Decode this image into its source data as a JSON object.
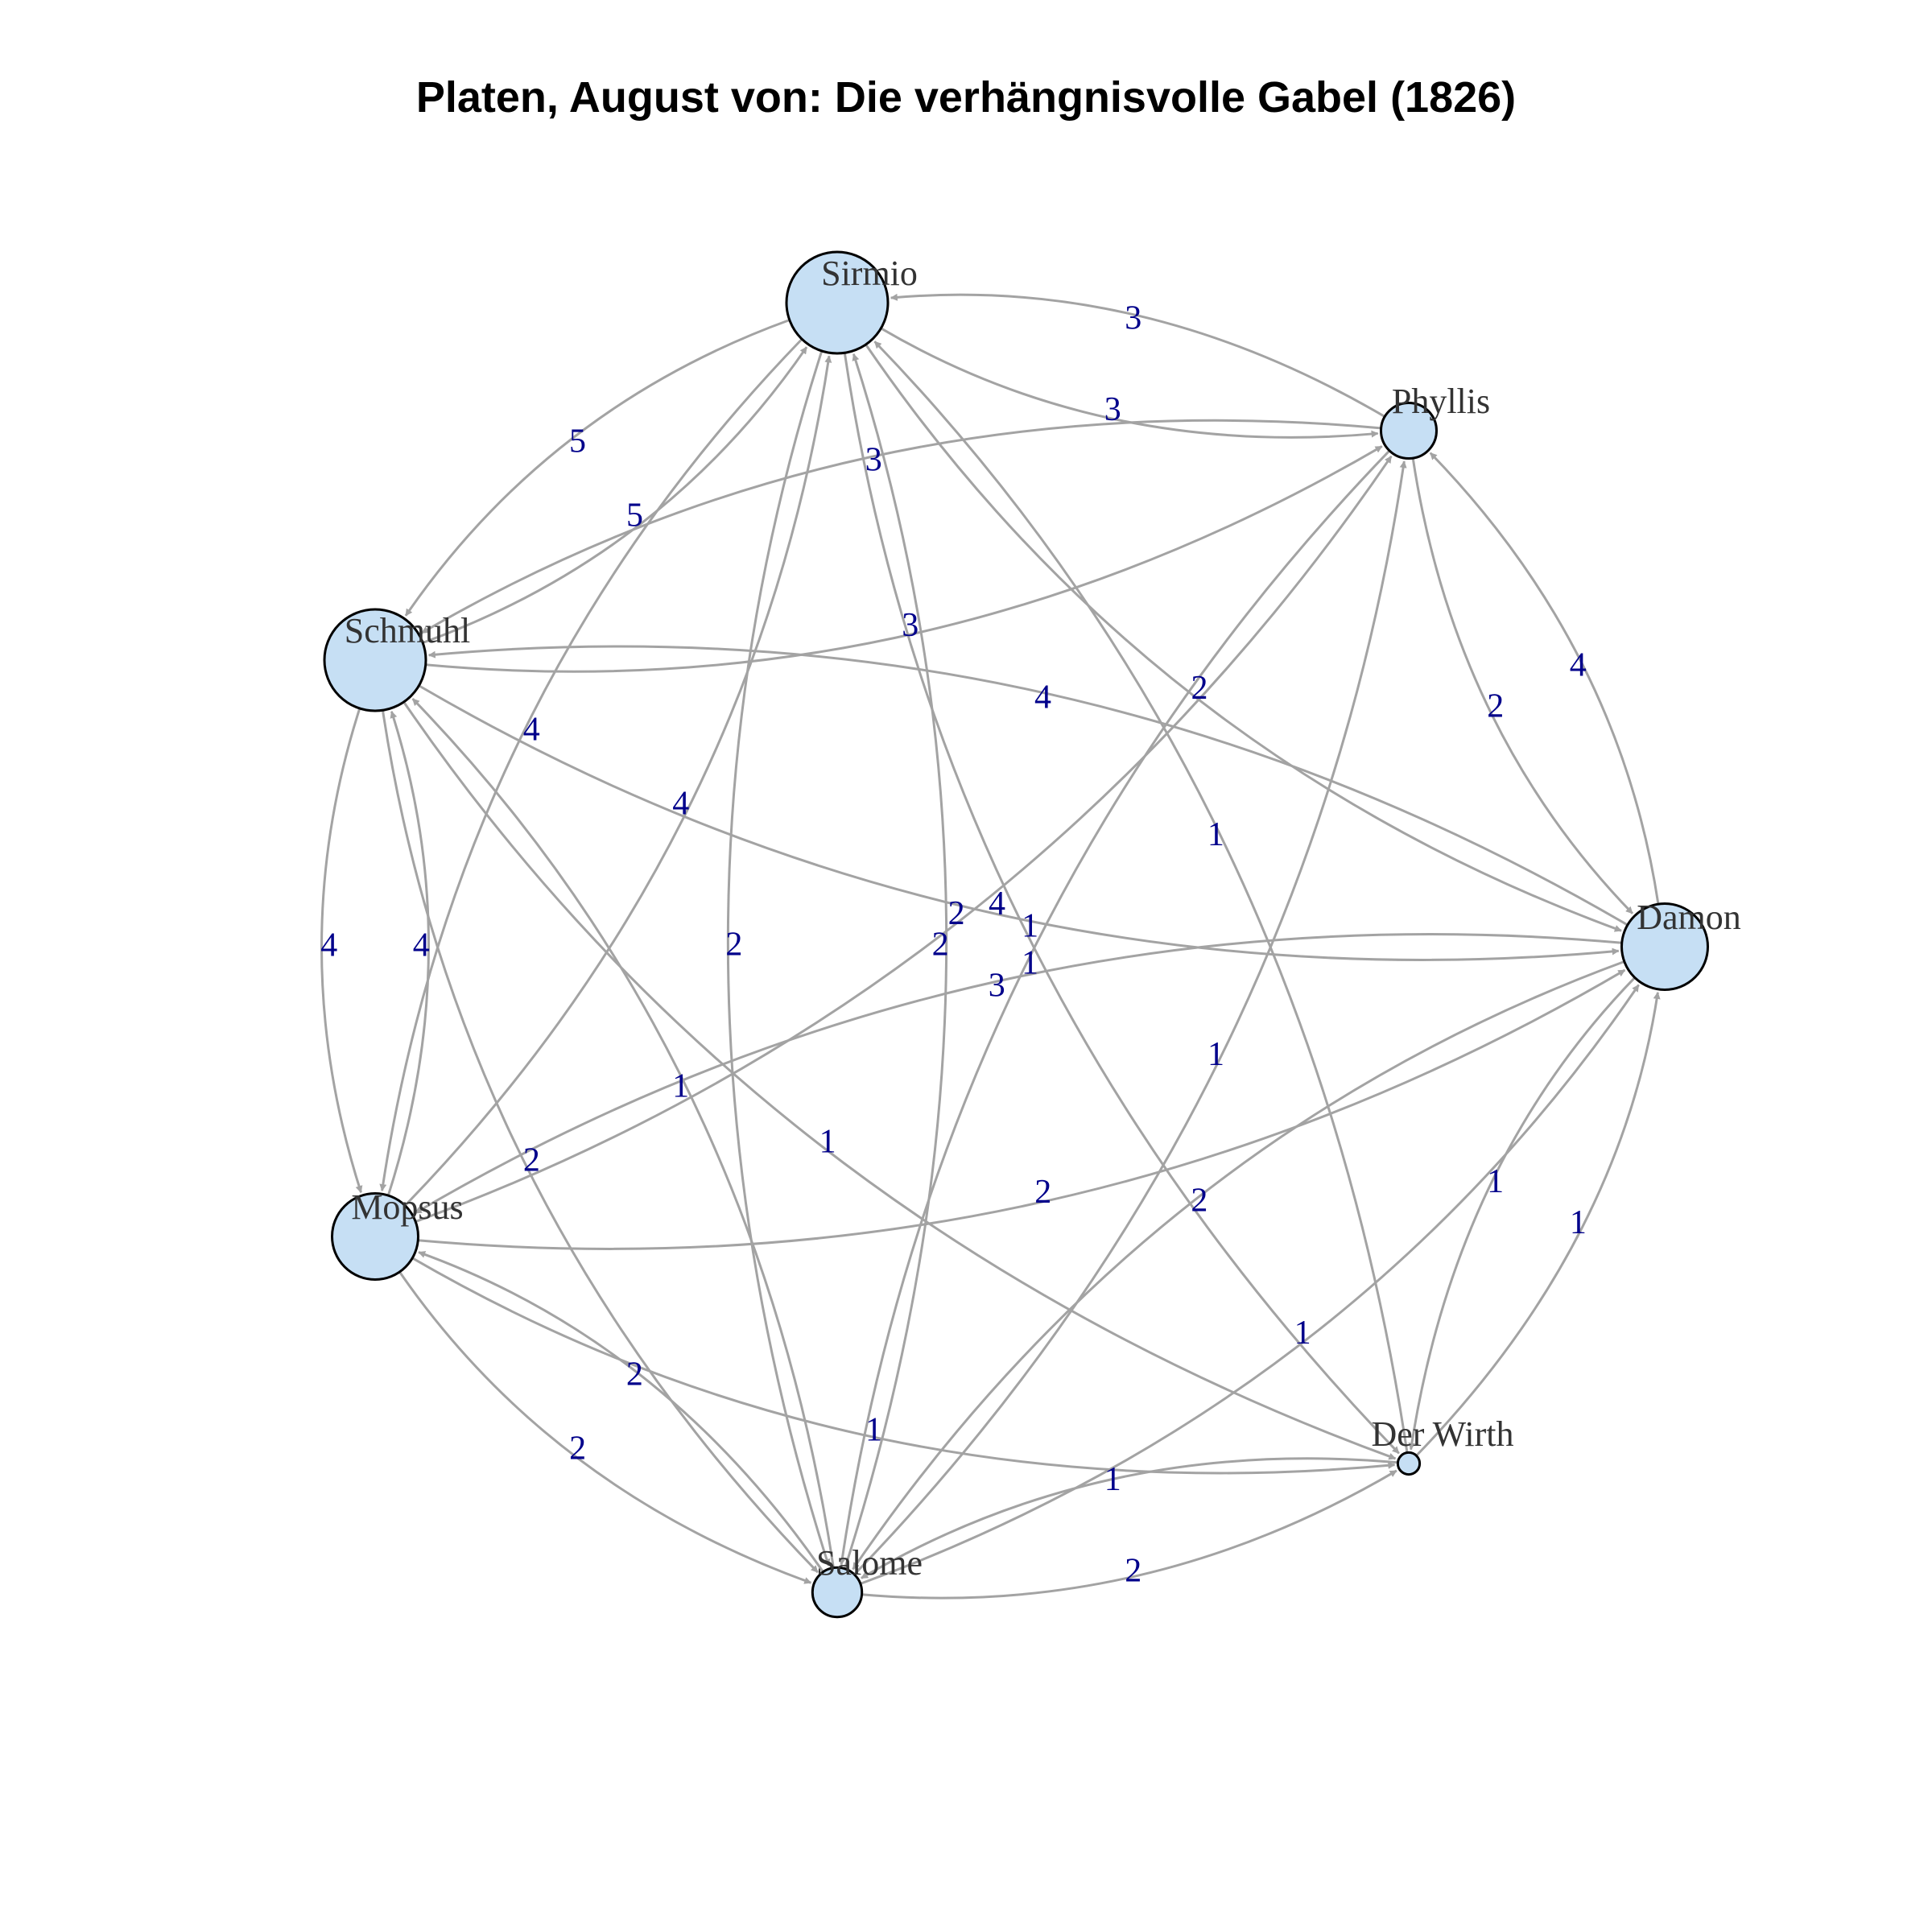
{
  "title": "Platen, August von: Die verhängnisvolle Gabel (1826)",
  "colors": {
    "node_fill": "#c6dff4",
    "edge": "#a3a3a3",
    "edge_label": "#00008b",
    "node_label": "#333333"
  },
  "nodes": [
    {
      "id": "sirmio",
      "label": "Sirmio",
      "size": 60
    },
    {
      "id": "phyllis",
      "label": "Phyllis",
      "size": 30
    },
    {
      "id": "schmuhl",
      "label": "Schmuhl",
      "size": 60
    },
    {
      "id": "damon",
      "label": "Damon",
      "size": 50
    },
    {
      "id": "mopsus",
      "label": "Mopsus",
      "size": 50
    },
    {
      "id": "derwirth",
      "label": "Der Wirth",
      "size": 8
    },
    {
      "id": "salome",
      "label": "Salome",
      "size": 26
    }
  ],
  "edges": [
    {
      "source": "sirmio",
      "target": "phyllis",
      "weight": "3"
    },
    {
      "source": "phyllis",
      "target": "sirmio",
      "weight": "3"
    },
    {
      "source": "sirmio",
      "target": "damon",
      "weight": "2"
    },
    {
      "source": "schmuhl",
      "target": "sirmio",
      "weight": "5"
    },
    {
      "source": "sirmio",
      "target": "schmuhl",
      "weight": "5"
    },
    {
      "source": "sirmio",
      "target": "mopsus",
      "weight": "4"
    },
    {
      "source": "mopsus",
      "target": "sirmio",
      "weight": "4"
    },
    {
      "source": "sirmio",
      "target": "salome",
      "weight": "2"
    },
    {
      "source": "salome",
      "target": "sirmio",
      "weight": "2"
    },
    {
      "source": "sirmio",
      "target": "derwirth",
      "weight": "1"
    },
    {
      "source": "derwirth",
      "target": "sirmio",
      "weight": "1"
    },
    {
      "source": "phyllis",
      "target": "damon",
      "weight": "2"
    },
    {
      "source": "damon",
      "target": "phyllis",
      "weight": "4"
    },
    {
      "source": "schmuhl",
      "target": "phyllis",
      "weight": "3"
    },
    {
      "source": "phyllis",
      "target": "schmuhl",
      "weight": "3"
    },
    {
      "source": "mopsus",
      "target": "phyllis",
      "weight": "2"
    },
    {
      "source": "salome",
      "target": "phyllis",
      "weight": "1"
    },
    {
      "source": "phyllis",
      "target": "salome",
      "weight": "1"
    },
    {
      "source": "schmuhl",
      "target": "damon",
      "weight": "4"
    },
    {
      "source": "damon",
      "target": "schmuhl",
      "weight": "4"
    },
    {
      "source": "schmuhl",
      "target": "mopsus",
      "weight": "4"
    },
    {
      "source": "mopsus",
      "target": "schmuhl",
      "weight": "4"
    },
    {
      "source": "schmuhl",
      "target": "salome",
      "weight": "2"
    },
    {
      "source": "salome",
      "target": "schmuhl",
      "weight": "1"
    },
    {
      "source": "schmuhl",
      "target": "derwirth",
      "weight": "1"
    },
    {
      "source": "damon",
      "target": "mopsus",
      "weight": "3"
    },
    {
      "source": "mopsus",
      "target": "damon",
      "weight": "2"
    },
    {
      "source": "damon",
      "target": "derwirth",
      "weight": "1"
    },
    {
      "source": "derwirth",
      "target": "damon",
      "weight": "1"
    },
    {
      "source": "damon",
      "target": "salome",
      "weight": "2"
    },
    {
      "source": "salome",
      "target": "damon",
      "weight": "1"
    },
    {
      "source": "mopsus",
      "target": "salome",
      "weight": "2"
    },
    {
      "source": "salome",
      "target": "mopsus",
      "weight": "2"
    },
    {
      "source": "mopsus",
      "target": "derwirth",
      "weight": "1"
    },
    {
      "source": "derwirth",
      "target": "salome",
      "weight": "1"
    },
    {
      "source": "salome",
      "target": "derwirth",
      "weight": "2"
    }
  ]
}
